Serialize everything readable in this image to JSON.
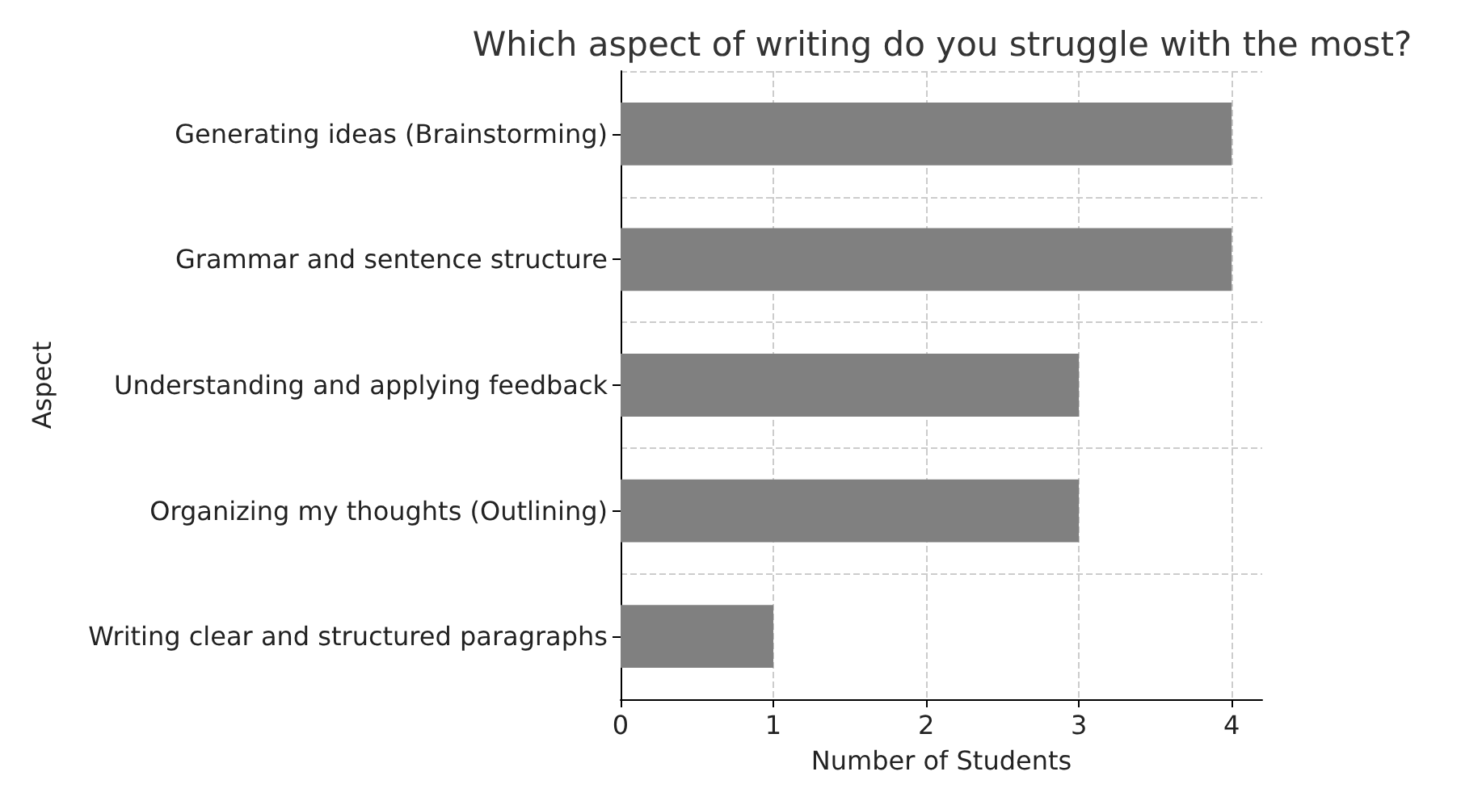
{
  "chart_data": {
    "type": "bar",
    "orientation": "horizontal",
    "title": "Which aspect of writing do you struggle with the most?",
    "xlabel": "Number of Students",
    "ylabel": "Aspect",
    "categories": [
      "Generating ideas (Brainstorming)",
      "Grammar and sentence structure",
      "Understanding and applying feedback",
      "Organizing my thoughts (Outlining)",
      "Writing clear and structured paragraphs"
    ],
    "values": [
      4,
      4,
      3,
      3,
      1
    ],
    "color": "#808080",
    "xlim": [
      0,
      4.2
    ],
    "xticks": [
      0,
      1,
      2,
      3,
      4
    ],
    "grid": true
  }
}
